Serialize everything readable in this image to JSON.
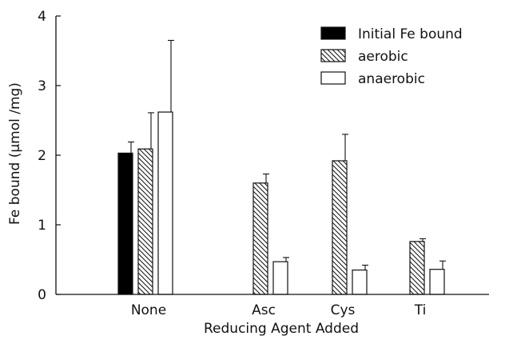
{
  "chart_data": {
    "type": "bar",
    "xlabel": "Reducing Agent Added",
    "ylabel": "Fe bound (μmol /mg)",
    "ylim": [
      0,
      4
    ],
    "yticks": [
      0,
      1,
      2,
      3,
      4
    ],
    "grid": false,
    "legend_position": "top-right",
    "categories": [
      "None",
      "Asc",
      "Cys",
      "Ti"
    ],
    "series": [
      {
        "name": "Initial Fe bound",
        "fill": "solid-black",
        "values": [
          2.03,
          null,
          null,
          null
        ],
        "errors": [
          0.16,
          null,
          null,
          null
        ]
      },
      {
        "name": "aerobic",
        "fill": "diagonal-hatch",
        "values": [
          2.09,
          1.6,
          1.92,
          0.76
        ],
        "errors": [
          0.52,
          0.13,
          0.38,
          0.04
        ]
      },
      {
        "name": "anaerobic",
        "fill": "white",
        "values": [
          2.62,
          0.47,
          0.35,
          0.36
        ],
        "errors": [
          1.03,
          0.06,
          0.07,
          0.12
        ]
      }
    ]
  }
}
